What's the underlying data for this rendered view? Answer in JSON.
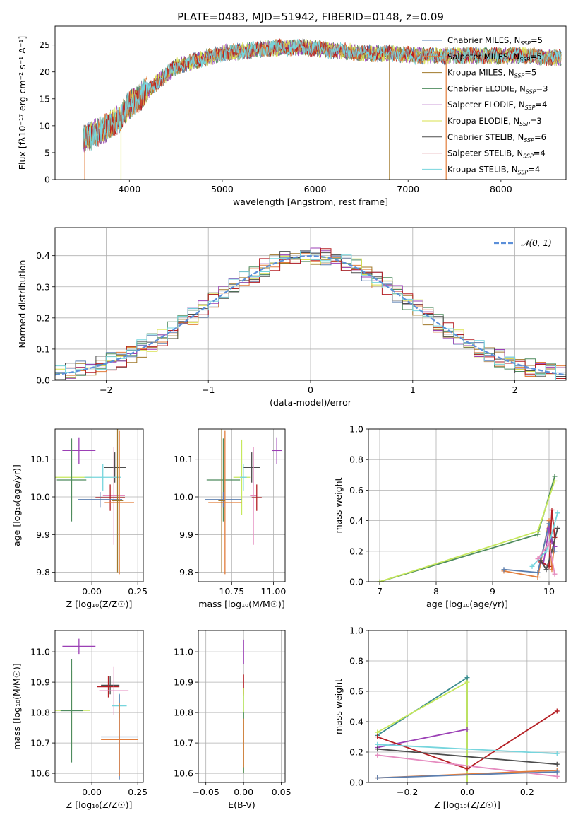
{
  "title": "PLATE=0483, MJD=51942, FIBERID=0148, z=0.09",
  "colors": [
    "#5b7fb0",
    "#e27d3b",
    "#a0782a",
    "#4e8b5e",
    "#9b3fb5",
    "#d9e04e",
    "#4d4d4d",
    "#b51f24",
    "#76d5dd",
    "#e58bbf",
    "#c6e85c",
    "#3a8c8f"
  ],
  "chart_data": [
    {
      "id": "spectrum",
      "type": "line",
      "title": "PLATE=0483, MJD=51942, FIBERID=0148, z=0.09",
      "xlabel": "wavelength [Angstrom, rest frame]",
      "ylabel": "Flux [fλ10⁻¹⁷ erg cm⁻² s⁻¹ A⁻¹]",
      "xlim": [
        3200,
        8700
      ],
      "ylim": [
        0,
        28.5
      ],
      "xticks": [
        4000,
        5000,
        6000,
        7000,
        8000
      ],
      "yticks": [
        0,
        5,
        10,
        15,
        20,
        25
      ],
      "grid": false,
      "legend_position": "top-right",
      "series": [
        {
          "name": "Chabrier MILES, N_SSP=5"
        },
        {
          "name": "Salpeter MILES, N_SSP=5"
        },
        {
          "name": "Kroupa MILES, N_SSP=5"
        },
        {
          "name": "Chabrier ELODIE, N_SSP=3"
        },
        {
          "name": "Salpeter ELODIE, N_SSP=4"
        },
        {
          "name": "Kroupa ELODIE, N_SSP=3"
        },
        {
          "name": "Chabrier STELIB, N_SSP=6"
        },
        {
          "name": "Salpeter STELIB, N_SSP=4"
        },
        {
          "name": "Kroupa STELIB, N_SSP=4"
        }
      ],
      "continuum": {
        "x": [
          3500,
          3700,
          3900,
          4000,
          4200,
          4500,
          4800,
          5000,
          5300,
          5600,
          5900,
          6200,
          6500,
          6800,
          7100,
          7400,
          7700,
          8000,
          8300,
          8650
        ],
        "y": [
          7.5,
          9,
          11.5,
          14,
          16.5,
          21,
          22.5,
          23.5,
          24,
          24.5,
          24.5,
          24,
          23.5,
          23.5,
          23,
          23,
          23,
          23,
          23,
          22.5
        ]
      },
      "spikes": [
        {
          "x": 3520,
          "y": 0,
          "color": "#e27d3b"
        },
        {
          "x": 3910,
          "y": 0,
          "color": "#d9e04e"
        },
        {
          "x": 6800,
          "y": 0,
          "color": "#a0782a"
        },
        {
          "x": 7410,
          "y": 0,
          "color": "#e27d3b"
        }
      ]
    },
    {
      "id": "residuals",
      "type": "line",
      "xlabel": "(data-model)/error",
      "ylabel": "Normed distribution",
      "xlim": [
        -2.5,
        2.5
      ],
      "ylim": [
        0,
        0.49
      ],
      "xticks": [
        -2,
        -1,
        0,
        1,
        2
      ],
      "yticks": [
        0.0,
        0.1,
        0.2,
        0.3,
        0.4
      ],
      "grid": true,
      "legend_position": "top-right",
      "reference": {
        "name": "𝒩(0, 1)",
        "mean": 0,
        "sigma": 1
      }
    },
    {
      "id": "age-vs-Z",
      "type": "scatter",
      "xlabel": "Z [log₁₀(Z/Z☉)]",
      "ylabel": "age  [log₁₀(age/yr)]",
      "xlim": [
        -0.2,
        0.28
      ],
      "ylim": [
        9.775,
        10.18
      ],
      "xticks": [
        0.0,
        0.25
      ],
      "yticks": [
        9.8,
        9.9,
        10.0,
        10.1
      ],
      "grid": true,
      "points": [
        {
          "x": -0.07,
          "xerr": 0.09,
          "y": 10.123,
          "yerr": 0.035,
          "c": 4
        },
        {
          "x": 0.125,
          "xerr": 0.06,
          "y": 10.078,
          "yerr": 0.04,
          "c": 6
        },
        {
          "x": -0.11,
          "xerr": 0.11,
          "y": 10.052,
          "yerr": 0.1,
          "c": 10
        },
        {
          "x": -0.11,
          "xerr": 0.08,
          "y": 10.045,
          "yerr": 0.11,
          "c": 3
        },
        {
          "x": 0.06,
          "xerr": 0.1,
          "y": 10.052,
          "yerr": 0.035,
          "c": 8
        },
        {
          "x": 0.12,
          "xerr": 0.06,
          "y": 10.003,
          "yerr": 0.13,
          "c": 9
        },
        {
          "x": 0.1,
          "xerr": 0.08,
          "y": 9.998,
          "yerr": 0.035,
          "c": 7
        },
        {
          "x": 0.045,
          "xerr": 0.12,
          "y": 9.993,
          "yerr": 0.02,
          "c": 0
        },
        {
          "x": 0.15,
          "xerr": 0.08,
          "y": 9.985,
          "yerr": 0.19,
          "c": 1
        },
        {
          "x": 0.14,
          "xerr": 0.03,
          "y": 9.99,
          "yerr": 0.19,
          "c": 2
        }
      ]
    },
    {
      "id": "age-vs-mass",
      "type": "scatter",
      "xlabel": "mass [log₁₀(M/M☉)]",
      "xlim": [
        10.55,
        11.07
      ],
      "ylim": [
        9.775,
        10.18
      ],
      "xticks": [
        10.75,
        11.0
      ],
      "yticks": [
        9.8,
        9.9,
        10.0,
        10.1
      ],
      "grid": true,
      "points": [
        {
          "x": 11.02,
          "xerr": 0.03,
          "y": 10.123,
          "yerr": 0.035,
          "c": 4
        },
        {
          "x": 10.87,
          "xerr": 0.05,
          "y": 10.078,
          "yerr": 0.04,
          "c": 6
        },
        {
          "x": 10.81,
          "xerr": 0.05,
          "y": 10.052,
          "yerr": 0.1,
          "c": 10
        },
        {
          "x": 10.7,
          "xerr": 0.1,
          "y": 10.045,
          "yerr": 0.11,
          "c": 3
        },
        {
          "x": 10.82,
          "xerr": 0.02,
          "y": 10.052,
          "yerr": 0.035,
          "c": 8
        },
        {
          "x": 10.88,
          "xerr": 0.02,
          "y": 10.003,
          "yerr": 0.13,
          "c": 9
        },
        {
          "x": 10.9,
          "xerr": 0.03,
          "y": 9.998,
          "yerr": 0.035,
          "c": 7
        },
        {
          "x": 10.7,
          "xerr": 0.11,
          "y": 9.993,
          "yerr": 0.02,
          "c": 0
        },
        {
          "x": 10.71,
          "xerr": 0.1,
          "y": 9.985,
          "yerr": 0.19,
          "c": 1
        },
        {
          "x": 10.69,
          "xerr": 0.02,
          "y": 9.99,
          "yerr": 0.19,
          "c": 2
        }
      ]
    },
    {
      "id": "weight-vs-age",
      "type": "line",
      "xlabel": "age  [log₁₀(age/yr)]",
      "ylabel": "mass weight",
      "xlim": [
        6.8,
        10.3
      ],
      "ylim": [
        0,
        1.0
      ],
      "xticks": [
        7,
        8,
        9,
        10
      ],
      "yticks": [
        0.0,
        0.2,
        0.4,
        0.6,
        0.8,
        1.0
      ],
      "grid": true,
      "series": [
        {
          "c": 3,
          "x": [
            7.0,
            9.8,
            10.1
          ],
          "y": [
            0.0,
            0.31,
            0.69
          ]
        },
        {
          "c": 10,
          "x": [
            7.0,
            9.8,
            10.1
          ],
          "y": [
            0.0,
            0.33,
            0.66
          ]
        },
        {
          "c": 1,
          "x": [
            9.2,
            9.8,
            10.0,
            10.05,
            10.1
          ],
          "y": [
            0.07,
            0.03,
            0.4,
            0.08,
            0.28
          ]
        },
        {
          "c": 0,
          "x": [
            9.2,
            9.8,
            10.0,
            10.05,
            10.1
          ],
          "y": [
            0.08,
            0.06,
            0.38,
            0.28,
            0.2
          ]
        },
        {
          "c": 4,
          "x": [
            9.9,
            10.0,
            10.05,
            10.1
          ],
          "y": [
            0.12,
            0.35,
            0.26,
            0.23
          ]
        },
        {
          "c": 7,
          "x": [
            9.85,
            10.0,
            10.05,
            10.1
          ],
          "y": [
            0.13,
            0.1,
            0.47,
            0.29
          ]
        },
        {
          "c": 6,
          "x": [
            9.85,
            9.95,
            10.05,
            10.15
          ],
          "y": [
            0.14,
            0.08,
            0.2,
            0.35
          ]
        },
        {
          "c": 8,
          "x": [
            9.7,
            9.95,
            10.0,
            10.15
          ],
          "y": [
            0.1,
            0.2,
            0.25,
            0.45
          ]
        },
        {
          "c": 9,
          "x": [
            9.8,
            10.0,
            10.1
          ],
          "y": [
            0.15,
            0.25,
            0.05
          ]
        }
      ]
    },
    {
      "id": "mass-vs-Z",
      "type": "scatter",
      "xlabel": "Z [log₁₀(Z/Z☉)]",
      "ylabel": "mass [log₁₀(M/M☉)]",
      "xlim": [
        -0.2,
        0.28
      ],
      "ylim": [
        10.57,
        11.07
      ],
      "xticks": [
        0.0,
        0.25
      ],
      "yticks": [
        10.6,
        10.7,
        10.8,
        10.9,
        11.0
      ],
      "grid": true,
      "points": [
        {
          "x": -0.07,
          "xerr": 0.09,
          "y": 11.018,
          "yerr": 0.025,
          "c": 4
        },
        {
          "x": 0.1,
          "xerr": 0.05,
          "y": 10.89,
          "yerr": 0.03,
          "c": 6
        },
        {
          "x": 0.09,
          "xerr": 0.06,
          "y": 10.885,
          "yerr": 0.035,
          "c": 7
        },
        {
          "x": 0.12,
          "xerr": 0.08,
          "y": 10.872,
          "yerr": 0.08,
          "c": 9
        },
        {
          "x": 0.15,
          "xerr": 0.04,
          "y": 10.822,
          "yerr": 0.04,
          "c": 8
        },
        {
          "x": -0.11,
          "xerr": 0.1,
          "y": 10.807,
          "yerr": 0.13,
          "c": 10
        },
        {
          "x": -0.11,
          "xerr": 0.06,
          "y": 10.806,
          "yerr": 0.17,
          "c": 3
        },
        {
          "x": 0.15,
          "xerr": 0.1,
          "y": 10.72,
          "yerr": 0.14,
          "c": 0
        },
        {
          "x": 0.15,
          "xerr": 0.1,
          "y": 10.711,
          "yerr": 0.12,
          "c": 1
        }
      ]
    },
    {
      "id": "mass-vs-EBV",
      "type": "scatter",
      "xlabel": "E(B-V)",
      "xlim": [
        -0.06,
        0.055
      ],
      "ylim": [
        10.57,
        11.07
      ],
      "xticks": [
        -0.05,
        0.0,
        0.05
      ],
      "yticks": [
        10.6,
        10.7,
        10.8,
        10.9,
        11.0
      ],
      "grid": true,
      "points": [
        {
          "x": 0.0,
          "xerr": 0.0,
          "y": 11.0,
          "yerr": 0.04,
          "c": 4
        },
        {
          "x": 0.0,
          "xerr": 0.0,
          "y": 10.89,
          "yerr": 0.035,
          "c": 7
        },
        {
          "x": 0.0,
          "xerr": 0.0,
          "y": 10.82,
          "yerr": 0.04,
          "c": 8
        },
        {
          "x": 0.0,
          "xerr": 0.0,
          "y": 10.74,
          "yerr": 0.14,
          "c": 10
        },
        {
          "x": 0.0,
          "xerr": 0.0,
          "y": 10.7,
          "yerr": 0.1,
          "c": 3
        },
        {
          "x": 0.0,
          "xerr": 0.0,
          "y": 10.7,
          "yerr": 0.08,
          "c": 1
        }
      ]
    },
    {
      "id": "weight-vs-Z",
      "type": "line",
      "xlabel": "Z [log₁₀(Z/Z☉)]",
      "ylabel": "mass weight",
      "xlim": [
        -0.33,
        0.33
      ],
      "ylim": [
        0,
        1.0
      ],
      "xticks": [
        -0.2,
        0.0,
        0.2
      ],
      "yticks": [
        0.0,
        0.2,
        0.4,
        0.6,
        0.8,
        1.0
      ],
      "grid": true,
      "series": [
        {
          "c": 11,
          "x": [
            -0.3,
            0.0,
            0.0
          ],
          "y": [
            0.31,
            0.69,
            0.0
          ]
        },
        {
          "c": 10,
          "x": [
            -0.3,
            0.0,
            0.0
          ],
          "y": [
            0.33,
            0.66,
            0.0
          ]
        },
        {
          "c": 4,
          "x": [
            -0.3,
            0.0
          ],
          "y": [
            0.23,
            0.35
          ]
        },
        {
          "c": 7,
          "x": [
            -0.3,
            0.0,
            0.3
          ],
          "y": [
            0.3,
            0.09,
            0.47
          ]
        },
        {
          "c": 8,
          "x": [
            -0.3,
            0.3
          ],
          "y": [
            0.25,
            0.19
          ]
        },
        {
          "c": 6,
          "x": [
            -0.3,
            0.3
          ],
          "y": [
            0.22,
            0.12
          ]
        },
        {
          "c": 9,
          "x": [
            -0.3,
            0.3
          ],
          "y": [
            0.18,
            0.04
          ]
        },
        {
          "c": 1,
          "x": [
            -0.3,
            0.3
          ],
          "y": [
            0.03,
            0.08
          ]
        },
        {
          "c": 0,
          "x": [
            -0.3,
            0.3
          ],
          "y": [
            0.03,
            0.07
          ]
        }
      ]
    }
  ]
}
